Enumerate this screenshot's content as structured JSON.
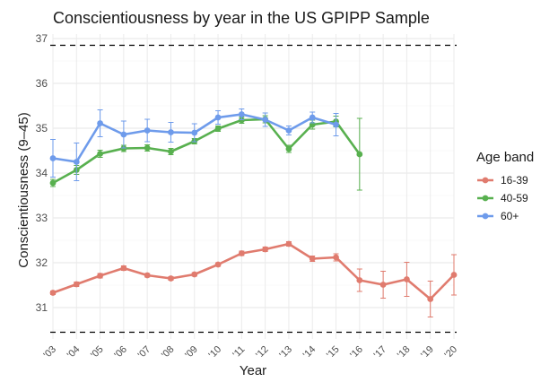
{
  "chart_data": {
    "type": "line",
    "title": "Conscientiousness by year in the US GPIPP Sample",
    "xlabel": "Year",
    "ylabel": "Conscientiousness (9–45)",
    "categories": [
      "'03",
      "'04",
      "'05",
      "'06",
      "'07",
      "'08",
      "'09",
      "'10",
      "'11",
      "'12",
      "'13",
      "'14",
      "'15",
      "'16",
      "'17",
      "'18",
      "'19",
      "'20"
    ],
    "ylim": [
      30.3,
      37.1
    ],
    "yticks": [
      31,
      32,
      33,
      34,
      35,
      36,
      37
    ],
    "reference_lines": [
      36.85,
      30.45
    ],
    "grid": true,
    "legend": {
      "title": "Age band",
      "position": "right"
    },
    "series": [
      {
        "name": "16-39",
        "color": "#E07B6E",
        "values": [
          31.33,
          31.52,
          31.71,
          31.88,
          31.72,
          31.65,
          31.74,
          31.96,
          32.21,
          32.3,
          32.42,
          32.09,
          32.12,
          31.61,
          31.51,
          31.63,
          31.19,
          31.73
        ],
        "err": [
          0.04,
          0.05,
          0.05,
          0.05,
          0.04,
          0.04,
          0.04,
          0.04,
          0.05,
          0.05,
          0.05,
          0.06,
          0.08,
          0.25,
          0.3,
          0.38,
          0.4,
          0.45
        ]
      },
      {
        "name": "40-59",
        "color": "#58B04F",
        "values": [
          33.78,
          34.07,
          34.43,
          34.55,
          34.56,
          34.48,
          34.71,
          34.99,
          35.18,
          35.2,
          34.54,
          35.08,
          35.15,
          34.42,
          null,
          null,
          null,
          null
        ],
        "err": [
          0.08,
          0.1,
          0.08,
          0.07,
          0.07,
          0.07,
          0.06,
          0.06,
          0.07,
          0.08,
          0.08,
          0.1,
          0.12,
          0.8,
          null,
          null,
          null,
          null
        ]
      },
      {
        "name": "60+",
        "color": "#6E9BEB",
        "values": [
          34.33,
          34.25,
          35.11,
          34.86,
          34.95,
          34.91,
          34.9,
          35.24,
          35.31,
          35.19,
          34.95,
          35.24,
          35.08,
          null,
          null,
          null,
          null,
          null
        ],
        "err": [
          0.42,
          0.42,
          0.3,
          0.3,
          0.25,
          0.22,
          0.2,
          0.15,
          0.12,
          0.15,
          0.1,
          0.12,
          0.25,
          null,
          null,
          null,
          null,
          null
        ]
      }
    ]
  }
}
